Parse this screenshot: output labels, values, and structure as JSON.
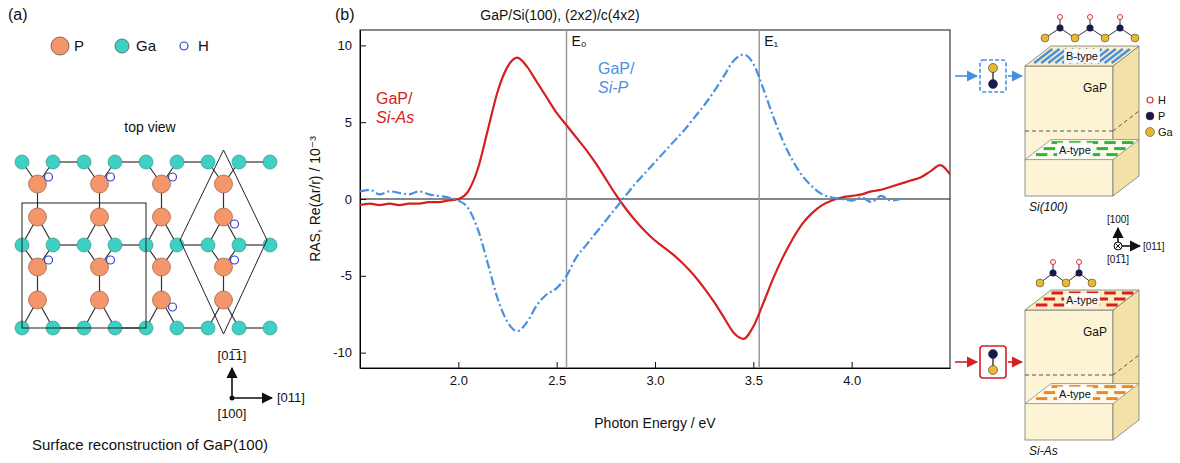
{
  "panel_a": {
    "letter": "(a)",
    "legend": [
      {
        "label": "P",
        "color": "#f4956a"
      },
      {
        "label": "Ga",
        "color": "#3fd0c4"
      },
      {
        "label": "H",
        "color": "#3344cc"
      }
    ],
    "view_label": "top view",
    "caption": "Surface reconstruction of GaP(100)",
    "directions": {
      "up": "[01̅1]",
      "right": "[011]",
      "normal": "[100]"
    }
  },
  "panel_b": {
    "letter": "(b)"
  },
  "chart_data": {
    "type": "line",
    "title": "GaP/Si(100), (2x2)/c(4x2)",
    "x_label": "Photon Energy / eV",
    "y_label": "RAS, Re(Δr/r) / 10⁻³",
    "xlim": [
      1.5,
      4.5
    ],
    "ylim": [
      -11,
      11
    ],
    "xticks": [
      {
        "value": 2,
        "label": "2.0"
      },
      2.5,
      {
        "value": 3,
        "label": "3.0"
      },
      3.5,
      {
        "value": 4,
        "label": "4.0"
      }
    ],
    "yticks": [
      -10,
      -5,
      0,
      5,
      10
    ],
    "grid": false,
    "vlines": [
      {
        "x": 2.55,
        "label": "E₀"
      },
      {
        "x": 3.53,
        "label": "E₁"
      }
    ],
    "x": [
      1.5,
      1.55,
      1.6,
      1.65,
      1.7,
      1.75,
      1.8,
      1.85,
      1.9,
      1.95,
      2.0,
      2.05,
      2.1,
      2.15,
      2.2,
      2.25,
      2.3,
      2.35,
      2.4,
      2.45,
      2.5,
      2.55,
      2.6,
      2.65,
      2.7,
      2.75,
      2.8,
      2.85,
      2.9,
      2.95,
      3.0,
      3.05,
      3.1,
      3.15,
      3.2,
      3.25,
      3.3,
      3.35,
      3.4,
      3.45,
      3.5,
      3.55,
      3.6,
      3.65,
      3.7,
      3.75,
      3.8,
      3.85,
      3.9,
      3.95,
      4.0,
      4.05,
      4.1,
      4.15,
      4.2,
      4.25,
      4.3,
      4.35,
      4.4,
      4.45,
      4.5
    ],
    "series": [
      {
        "name": "GaP/ Si-As",
        "color": "#d42020",
        "line_style": "solid",
        "values": [
          -0.4,
          -0.3,
          -0.4,
          -0.3,
          -0.4,
          -0.3,
          -0.3,
          -0.2,
          -0.2,
          -0.1,
          0.0,
          0.5,
          2.0,
          4.5,
          7.0,
          8.6,
          9.2,
          8.6,
          7.6,
          6.6,
          5.6,
          4.8,
          4.0,
          3.2,
          2.3,
          1.3,
          0.3,
          -0.6,
          -1.4,
          -2.1,
          -2.7,
          -3.2,
          -3.7,
          -4.3,
          -5.0,
          -5.8,
          -6.7,
          -7.7,
          -8.7,
          -9.1,
          -8.3,
          -6.8,
          -5.2,
          -3.8,
          -2.6,
          -1.6,
          -0.9,
          -0.4,
          -0.1,
          0.1,
          0.2,
          0.3,
          0.5,
          0.6,
          0.8,
          1.0,
          1.2,
          1.4,
          1.8,
          2.2,
          1.6
        ]
      },
      {
        "name": "GaP/ Si-P",
        "color": "#4a90e2",
        "line_style": "dashdot",
        "values": [
          0.5,
          0.6,
          0.3,
          0.5,
          0.4,
          0.3,
          0.5,
          0.3,
          0.2,
          0.1,
          -0.1,
          -0.6,
          -2.0,
          -4.2,
          -6.5,
          -8.0,
          -8.6,
          -8.0,
          -6.9,
          -6.2,
          -5.8,
          -5.0,
          -3.8,
          -3.0,
          -2.2,
          -1.4,
          -0.6,
          0.2,
          1.0,
          1.7,
          2.4,
          3.1,
          3.8,
          4.5,
          5.3,
          6.1,
          7.0,
          8.0,
          9.0,
          9.4,
          8.8,
          7.2,
          5.4,
          3.8,
          2.5,
          1.5,
          0.8,
          0.3,
          0.1,
          0.0,
          -0.1,
          0.1,
          -0.2,
          0.2,
          -0.1,
          0.0,
          null,
          null,
          null,
          null,
          null
        ]
      }
    ]
  },
  "schematics": [
    {
      "film": "GaP",
      "substrate": "Si(100)",
      "color": "#4a90e2",
      "film_domain": {
        "label": "B-type",
        "color": "#4a90e2"
      },
      "substrate_domain": {
        "label": "A-type",
        "color": "#2db82d"
      }
    },
    {
      "film": "GaP",
      "substrate": "Si-As",
      "color": "#d42020",
      "film_domain": {
        "label": "A-type",
        "color": "#d42020"
      },
      "substrate_domain": {
        "label": "A-type",
        "color": "#f08a1e"
      }
    }
  ],
  "schematic_legend": [
    {
      "label": "H",
      "color": "#e03030"
    },
    {
      "label": "P",
      "color": "#1a1a4a"
    },
    {
      "label": "Ga",
      "color": "#e8b830"
    }
  ],
  "schematic_axes": {
    "up": "[100]",
    "right": "[011]",
    "normal": "[01̅1]"
  }
}
